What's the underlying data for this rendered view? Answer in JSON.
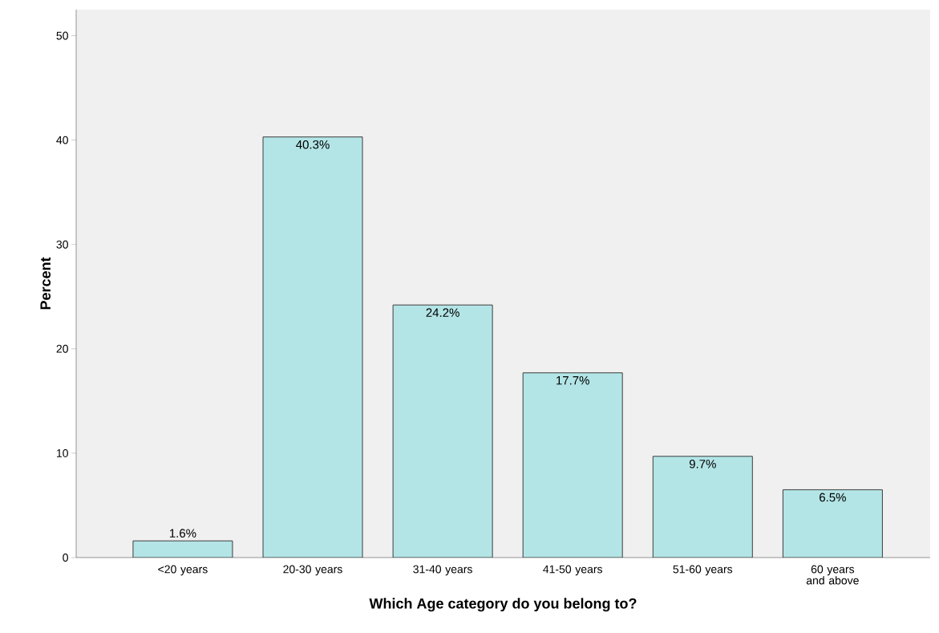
{
  "chart_data": {
    "type": "bar",
    "xlabel": "Which Age category do you belong to?",
    "ylabel": "Percent",
    "categories": [
      "<20 years",
      "20-30 years",
      "31-40 years",
      "41-50 years",
      "51-60 years",
      "60 years and above"
    ],
    "values": [
      1.6,
      40.3,
      24.2,
      17.7,
      9.7,
      6.5
    ],
    "value_labels": [
      "1.6%",
      "40.3%",
      "24.2%",
      "17.7%",
      "9.7%",
      "6.5%"
    ],
    "color": "#b3e5e6",
    "ylim": [
      0,
      52.5
    ],
    "yticks": [
      0,
      10,
      20,
      30,
      40,
      50
    ],
    "grid": false
  }
}
